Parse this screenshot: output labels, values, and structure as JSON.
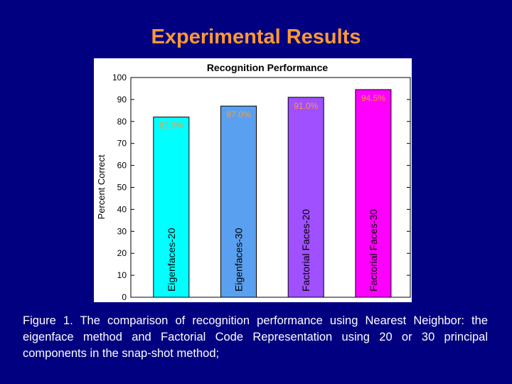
{
  "slide": {
    "title": "Experimental Results",
    "caption": "Figure 1. The comparison of recognition performance using Nearest Neighbor: the eigenface method and Factorial Code Representation using 20 or 30 principal components in the snap-shot method;"
  },
  "colors": {
    "background": "#000080",
    "title": "#ff9933",
    "caption": "#ffffff",
    "plot_background": "#ffffff",
    "bar_label": "#ff9933"
  },
  "chart_data": {
    "type": "bar",
    "title": "Recognition Performance",
    "xlabel": "",
    "ylabel": "Percent Correct",
    "ylim": [
      0,
      100
    ],
    "yticks": [
      0,
      10,
      20,
      30,
      40,
      50,
      60,
      70,
      80,
      90,
      100
    ],
    "categories": [
      "Eigenfaces-20",
      "Eigenfaces-30",
      "Factorial Faces-20",
      "Factorial Faces-30"
    ],
    "values": [
      82.0,
      87.0,
      91.0,
      94.5
    ],
    "value_labels": [
      "82.0%",
      "87.0%",
      "91.0%",
      "94.5%"
    ],
    "bar_colors": [
      "#00ffff",
      "#5aa0f0",
      "#a050ff",
      "#ff00ff"
    ],
    "grid": false,
    "legend": "none"
  }
}
